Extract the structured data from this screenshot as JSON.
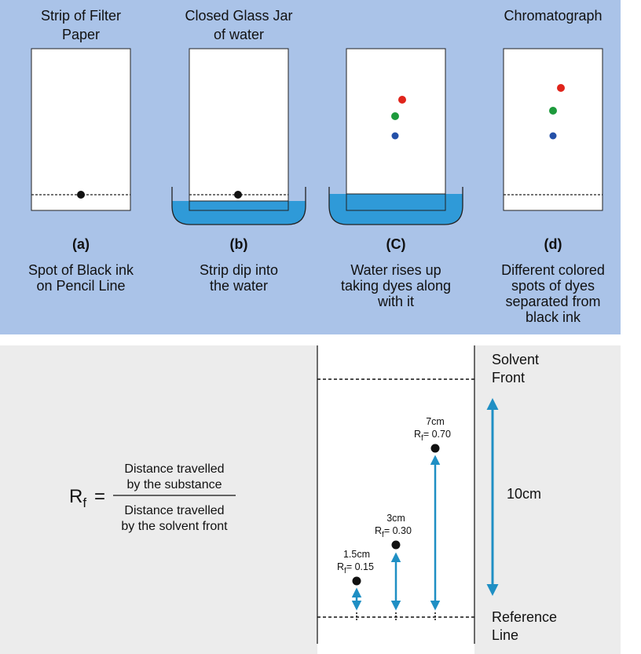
{
  "colors": {
    "top_panel_bg": "#aac3e8",
    "bottom_panel_bg": "#ececec",
    "water": "#2f9ad8",
    "arrow": "#1f8fc4",
    "dot_black": "#111111",
    "dot_red": "#e0241b",
    "dot_green": "#1d9a3c",
    "dot_blue": "#2450a8"
  },
  "panels": [
    {
      "title": [
        "Strip of Filter",
        "Paper"
      ],
      "letter": "(a)",
      "caption": [
        "Spot of Black ink",
        "on Pencil Line"
      ]
    },
    {
      "title": [
        "Closed Glass Jar",
        "of water"
      ],
      "letter": "(b)",
      "caption": [
        "Strip dip into",
        "the water"
      ]
    },
    {
      "title": [],
      "letter": "(C)",
      "caption": [
        "Water rises up",
        "taking dyes along",
        "with it"
      ]
    },
    {
      "title": [
        "Chromatograph"
      ],
      "letter": "(d)",
      "caption": [
        "Different colored",
        "spots of dyes",
        "separated from",
        "black ink"
      ]
    }
  ],
  "formula": {
    "lhs_main": "R",
    "lhs_sub": "f",
    "equals": "=",
    "numerator": [
      "Distance travelled",
      "by the substance"
    ],
    "denominator": [
      "Distance travelled",
      "by the solvent front"
    ]
  },
  "chromatogram": {
    "solvent_front_label": [
      "Solvent",
      "Front"
    ],
    "reference_line_label": [
      "Reference",
      "Line"
    ],
    "total_distance": "10cm",
    "spots": [
      {
        "distance": "1.5cm",
        "rf_main": "R",
        "rf_sub": "f",
        "rf_value": "= 0.15"
      },
      {
        "distance": "3cm",
        "rf_main": "R",
        "rf_sub": "f",
        "rf_value": "= 0.30"
      },
      {
        "distance": "7cm",
        "rf_main": "R",
        "rf_sub": "f",
        "rf_value": "= 0.70"
      }
    ]
  }
}
